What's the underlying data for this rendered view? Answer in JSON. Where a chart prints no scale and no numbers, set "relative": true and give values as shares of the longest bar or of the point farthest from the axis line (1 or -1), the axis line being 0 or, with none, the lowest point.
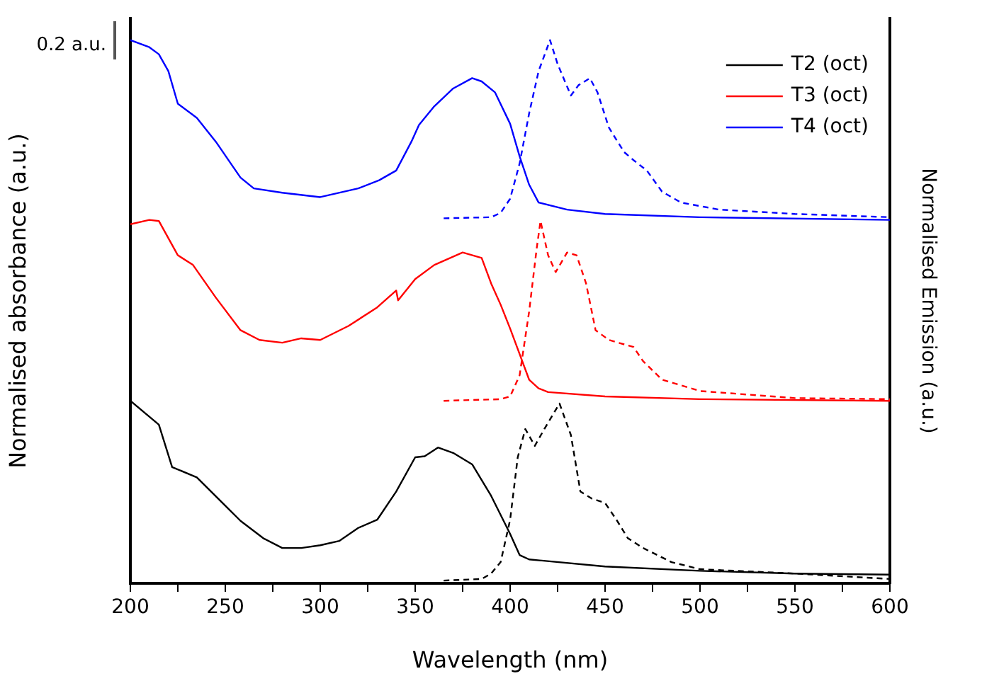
{
  "chart_data": {
    "type": "line",
    "relative": true,
    "xlabel": "Wavelength (nm)",
    "ylabel": "Normalised absorbance (a.u.)",
    "y2label": "Normalised Emission (a.u.)",
    "xlim": [
      200,
      600
    ],
    "xticks": [
      200,
      {
        "value": 225,
        "label": null
      },
      250,
      {
        "value": 275,
        "label": null
      },
      300,
      {
        "value": 325,
        "label": null
      },
      350,
      {
        "value": 375,
        "label": null
      },
      400,
      {
        "value": 425,
        "label": null
      },
      450,
      {
        "value": 475,
        "label": null
      },
      500,
      {
        "value": 525,
        "label": null
      },
      550,
      {
        "value": 575,
        "label": null
      },
      600
    ],
    "legend": "top right",
    "marker": "none",
    "grid": false,
    "annotations": [
      "0.2 a.u."
    ],
    "series": [
      {
        "name": "T2 (oct)",
        "color": "#000000",
        "line_style": "solid",
        "x": [
          200,
          215,
          222,
          235,
          250,
          258,
          270,
          280,
          290,
          300,
          310,
          320,
          330,
          340,
          350,
          355,
          362,
          370,
          380,
          390,
          400,
          405,
          410,
          450,
          500,
          550,
          600
        ],
        "values": [
          0.336,
          0.292,
          0.214,
          0.195,
          0.143,
          0.115,
          0.083,
          0.065,
          0.065,
          0.07,
          0.078,
          0.102,
          0.117,
          0.169,
          0.232,
          0.234,
          0.25,
          0.24,
          0.219,
          0.161,
          0.091,
          0.052,
          0.044,
          0.031,
          0.023,
          0.018,
          0.016
        ]
      },
      {
        "name": "T3 (oct)",
        "color": "#ff0000",
        "line_style": "solid",
        "x": [
          200,
          210,
          215,
          225,
          233,
          245,
          258,
          268,
          280,
          290,
          300,
          315,
          330,
          340,
          341,
          350,
          360,
          375,
          385,
          390,
          395,
          400,
          405,
          410,
          415,
          420,
          450,
          500,
          600
        ],
        "values": [
          0.661,
          0.669,
          0.667,
          0.604,
          0.586,
          0.526,
          0.466,
          0.448,
          0.443,
          0.451,
          0.448,
          0.474,
          0.508,
          0.539,
          0.521,
          0.56,
          0.586,
          0.609,
          0.599,
          0.552,
          0.513,
          0.469,
          0.422,
          0.375,
          0.359,
          0.352,
          0.344,
          0.339,
          0.336
        ]
      },
      {
        "name": "T4 (oct)",
        "color": "#0000ff",
        "line_style": "solid",
        "x": [
          200,
          210,
          215,
          220,
          225,
          235,
          245,
          258,
          265,
          280,
          300,
          320,
          331,
          340,
          348,
          352,
          360,
          370,
          380,
          385,
          392,
          400,
          405,
          410,
          415,
          430,
          450,
          500,
          600
        ],
        "values": [
          1,
          0.987,
          0.974,
          0.943,
          0.883,
          0.857,
          0.813,
          0.747,
          0.727,
          0.719,
          0.711,
          0.727,
          0.742,
          0.76,
          0.813,
          0.844,
          0.878,
          0.911,
          0.93,
          0.924,
          0.904,
          0.846,
          0.786,
          0.734,
          0.701,
          0.688,
          0.68,
          0.674,
          0.669
        ]
      },
      {
        "color": "#000000",
        "line_style": "dashed",
        "x": [
          365,
          385,
          390,
          395,
          400,
          404,
          408,
          413,
          418,
          426,
          432,
          437,
          443,
          450,
          456,
          462,
          470,
          485,
          500,
          550,
          600
        ],
        "values": [
          0.005,
          0.008,
          0.018,
          0.039,
          0.117,
          0.232,
          0.284,
          0.253,
          0.284,
          0.331,
          0.273,
          0.169,
          0.156,
          0.148,
          0.117,
          0.083,
          0.065,
          0.039,
          0.026,
          0.018,
          0.008
        ]
      },
      {
        "color": "#ff0000",
        "line_style": "dashed",
        "x": [
          365,
          395,
          400,
          405,
          410,
          414,
          416,
          420,
          424,
          430,
          435,
          440,
          445,
          452,
          465,
          470,
          480,
          500,
          550,
          600
        ],
        "values": [
          0.336,
          0.339,
          0.344,
          0.383,
          0.5,
          0.617,
          0.667,
          0.604,
          0.573,
          0.609,
          0.604,
          0.552,
          0.466,
          0.448,
          0.435,
          0.409,
          0.375,
          0.354,
          0.341,
          0.339
        ]
      },
      {
        "color": "#0000ff",
        "line_style": "dashed",
        "x": [
          365,
          390,
          395,
          400,
          405,
          410,
          415,
          421,
          425,
          432,
          436,
          442,
          446,
          452,
          460,
          465,
          472,
          480,
          490,
          510,
          550,
          600
        ],
        "values": [
          0.672,
          0.674,
          0.682,
          0.708,
          0.773,
          0.865,
          0.943,
          1,
          0.956,
          0.898,
          0.917,
          0.93,
          0.904,
          0.839,
          0.794,
          0.779,
          0.76,
          0.721,
          0.701,
          0.688,
          0.68,
          0.674
        ]
      }
    ]
  }
}
